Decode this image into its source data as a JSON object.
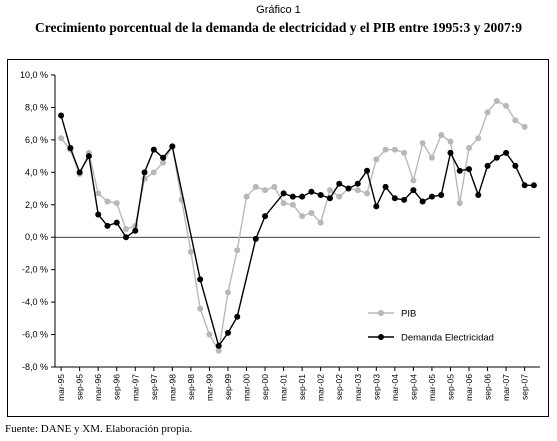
{
  "caption": "Gráfico 1",
  "title": "Crecimiento porcentual de la demanda de electricidad y el PIB entre 1995:3 y 2007:9",
  "source": "Fuente: DANE y XM. Elaboración propia.",
  "chart_data": {
    "type": "line",
    "title": "Crecimiento porcentual de la demanda de electricidad y el PIB entre 1995:3 y 2007:9",
    "xlabel": "",
    "ylabel": "",
    "ylim": [
      -8,
      10
    ],
    "yticks": [
      -8,
      -6,
      -4,
      -2,
      0,
      2,
      4,
      6,
      8,
      10
    ],
    "ytick_labels": [
      "-8,0 %",
      "-6,0 %",
      "-4,0 %",
      "-2,0 %",
      "0,0 %",
      "2,0 %",
      "4,0 %",
      "6,0 %",
      "8,0 %",
      "10,0 %"
    ],
    "xtick_labels": [
      "mar-95",
      "sep-95",
      "mar-96",
      "sep-96",
      "mar-97",
      "sep-97",
      "mar-98",
      "sep-98",
      "mar-99",
      "sep-99",
      "mar-00",
      "sep-00",
      "mar-01",
      "sep-01",
      "mar-02",
      "sep-02",
      "mar-03",
      "sep-03",
      "mar-04",
      "sep-04",
      "mar-05",
      "sep-05",
      "mar-06",
      "sep-06",
      "mar-07",
      "sep-07"
    ],
    "grid": false,
    "legend_position": "bottom-right",
    "series": [
      {
        "name": "PIB",
        "color": "#b8b8b8",
        "points": [
          [
            0,
            6.1
          ],
          [
            1,
            5.4
          ],
          [
            2,
            3.9
          ],
          [
            3,
            5.2
          ],
          [
            4,
            2.7
          ],
          [
            5,
            2.2
          ],
          [
            6,
            2.1
          ],
          [
            7,
            0.5
          ],
          [
            8,
            0.7
          ],
          [
            9,
            3.6
          ],
          [
            10,
            4.0
          ],
          [
            11,
            4.6
          ],
          [
            12,
            5.6
          ],
          [
            13,
            2.3
          ],
          [
            14,
            -0.9
          ],
          [
            15,
            -4.4
          ],
          [
            16,
            -6.0
          ],
          [
            17,
            -7.0
          ],
          [
            18,
            -3.4
          ],
          [
            19,
            -0.8
          ],
          [
            20,
            2.5
          ],
          [
            21,
            3.1
          ],
          [
            22,
            2.9
          ],
          [
            23,
            3.1
          ],
          [
            24,
            2.1
          ],
          [
            25,
            2.0
          ],
          [
            26,
            1.3
          ],
          [
            27,
            1.5
          ],
          [
            28,
            0.9
          ],
          [
            29,
            2.9
          ],
          [
            30,
            2.5
          ],
          [
            31,
            3.0
          ],
          [
            32,
            2.9
          ],
          [
            33,
            2.7
          ],
          [
            34,
            4.8
          ],
          [
            35,
            5.4
          ],
          [
            36,
            5.4
          ],
          [
            37,
            5.2
          ],
          [
            38,
            3.5
          ],
          [
            39,
            5.8
          ],
          [
            40,
            4.9
          ],
          [
            41,
            6.3
          ],
          [
            42,
            5.9
          ],
          [
            43,
            2.1
          ],
          [
            44,
            5.5
          ],
          [
            45,
            6.1
          ],
          [
            46,
            7.7
          ],
          [
            47,
            8.4
          ],
          [
            48,
            8.1
          ],
          [
            49,
            7.2
          ],
          [
            50,
            6.8
          ]
        ]
      },
      {
        "name": "Demanda Electricidad",
        "color": "#000000",
        "points": [
          [
            0,
            7.5
          ],
          [
            1,
            5.5
          ],
          [
            2,
            4.0
          ],
          [
            3,
            5.0
          ],
          [
            4,
            1.4
          ],
          [
            5,
            0.7
          ],
          [
            6,
            0.9
          ],
          [
            7,
            0.0
          ],
          [
            8,
            0.4
          ],
          [
            9,
            4.0
          ],
          [
            10,
            5.4
          ],
          [
            11,
            4.9
          ],
          [
            12,
            5.6
          ],
          [
            15,
            -2.6
          ],
          [
            17,
            -6.7
          ],
          [
            18,
            -5.9
          ],
          [
            19,
            -4.9
          ],
          [
            21,
            -0.1
          ],
          [
            22,
            1.3
          ],
          [
            24,
            2.7
          ],
          [
            25,
            2.5
          ],
          [
            26,
            2.5
          ],
          [
            27,
            2.8
          ],
          [
            28,
            2.6
          ],
          [
            29,
            2.4
          ],
          [
            30,
            3.3
          ],
          [
            31,
            3.0
          ],
          [
            32,
            3.3
          ],
          [
            33,
            4.1
          ],
          [
            34,
            1.9
          ],
          [
            35,
            3.1
          ],
          [
            36,
            2.4
          ],
          [
            37,
            2.3
          ],
          [
            38,
            2.9
          ],
          [
            39,
            2.2
          ],
          [
            40,
            2.5
          ],
          [
            41,
            2.6
          ],
          [
            42,
            5.2
          ],
          [
            43,
            4.1
          ],
          [
            44,
            4.2
          ],
          [
            45,
            2.6
          ],
          [
            46,
            4.4
          ],
          [
            47,
            4.9
          ],
          [
            48,
            5.2
          ],
          [
            49,
            4.4
          ],
          [
            50,
            3.2
          ],
          [
            51,
            3.2
          ]
        ]
      }
    ]
  }
}
